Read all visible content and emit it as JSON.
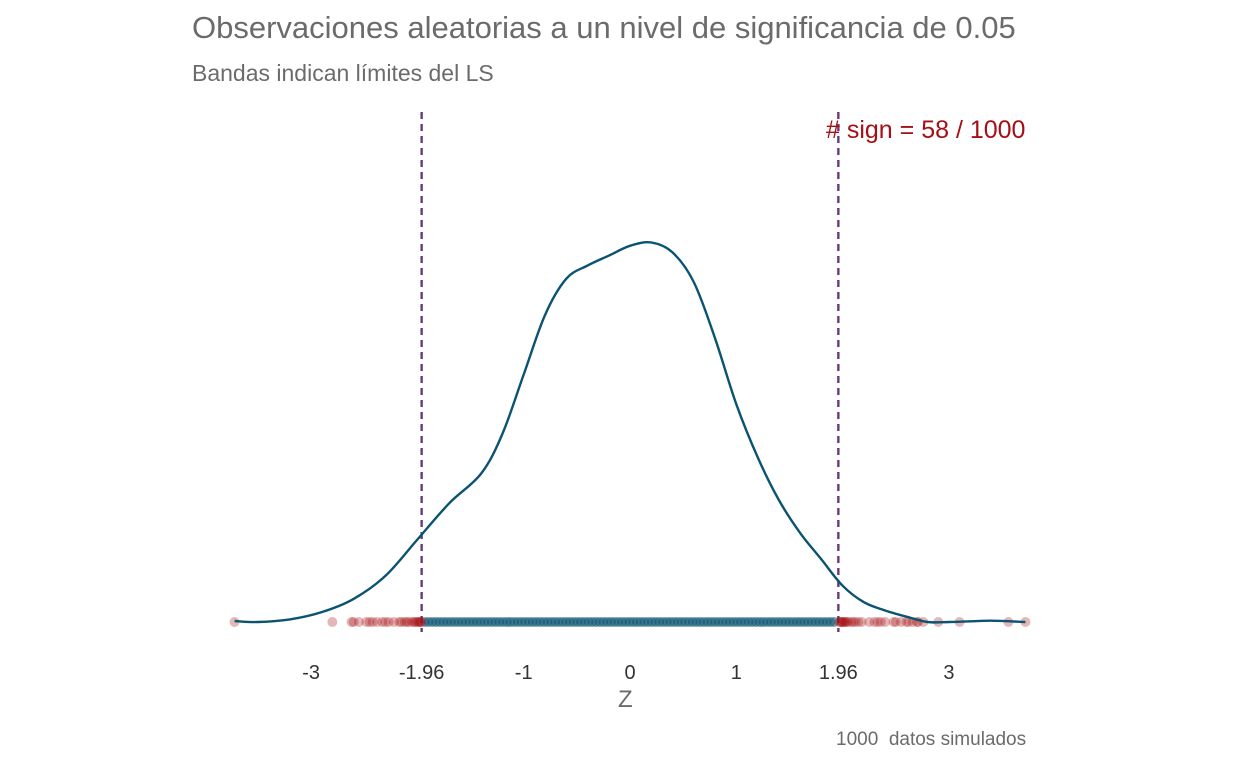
{
  "chart_data": {
    "type": "density",
    "title": "Observaciones aleatorias a un nivel de significancia de 0.05",
    "subtitle": "Bandas indican límites del LS",
    "xlabel": "Z",
    "caption": "1000  datos simulados",
    "annotation": "# sign =  58 / 1000",
    "xlim": [
      -3.75,
      3.75
    ],
    "x_ticks": [
      -3,
      -1.96,
      -1,
      0,
      1,
      1.96,
      3
    ],
    "x_tick_labels": [
      "-3",
      "-1.96",
      "-1",
      "0",
      "1",
      "1.96",
      "3"
    ],
    "critical_values": [
      -1.96,
      1.96
    ],
    "density_curve": {
      "x": [
        -3.72,
        -3.5,
        -3.2,
        -2.9,
        -2.6,
        -2.3,
        -2.0,
        -1.7,
        -1.4,
        -1.2,
        -1.0,
        -0.8,
        -0.6,
        -0.4,
        -0.2,
        0.0,
        0.2,
        0.4,
        0.6,
        0.8,
        1.0,
        1.2,
        1.4,
        1.6,
        1.8,
        2.0,
        2.2,
        2.4,
        2.6,
        2.8,
        3.0,
        3.2,
        3.4,
        3.72
      ],
      "y": [
        0.003,
        0.0,
        0.008,
        0.03,
        0.07,
        0.14,
        0.25,
        0.36,
        0.45,
        0.57,
        0.75,
        0.93,
        1.04,
        1.08,
        1.11,
        1.14,
        1.15,
        1.12,
        1.03,
        0.86,
        0.66,
        0.5,
        0.37,
        0.27,
        0.19,
        0.11,
        0.06,
        0.035,
        0.016,
        0.0,
        0.0,
        0.002,
        0.004,
        0.0
      ]
    },
    "points": {
      "significant_count": 58,
      "total": 1000,
      "significant_low": [
        -3.72,
        -2.8,
        -2.62,
        -2.55,
        -2.48,
        -2.42,
        -2.38,
        -2.33,
        -2.27,
        -2.22,
        -2.17,
        -2.12,
        -2.08,
        -2.05,
        -2.03,
        -2.0,
        -1.99,
        -1.98,
        -1.97,
        -1.965,
        -2.1,
        -2.3,
        -2.45,
        -2.6,
        -2.15,
        -2.02
      ],
      "significant_high": [
        1.97,
        1.98,
        2.0,
        2.02,
        2.05,
        2.08,
        2.12,
        2.18,
        2.25,
        2.33,
        2.4,
        2.48,
        2.55,
        2.6,
        2.66,
        2.71,
        2.76,
        3.1,
        3.56,
        3.72,
        2.3,
        2.5,
        2.1,
        2.04,
        2.7,
        2.9,
        1.99,
        2.15,
        2.36,
        2.62,
        2.02,
        2.0
      ],
      "center_range": [
        -1.96,
        1.96
      ]
    },
    "colors": {
      "curve": "#0b5372",
      "center_points": "#0b5372",
      "significant_points": "#a50f15",
      "critical_lines": "#6b3a7d",
      "annotation": "#a50f15",
      "text": "#6b6b6b",
      "ticks": "#333333"
    }
  }
}
